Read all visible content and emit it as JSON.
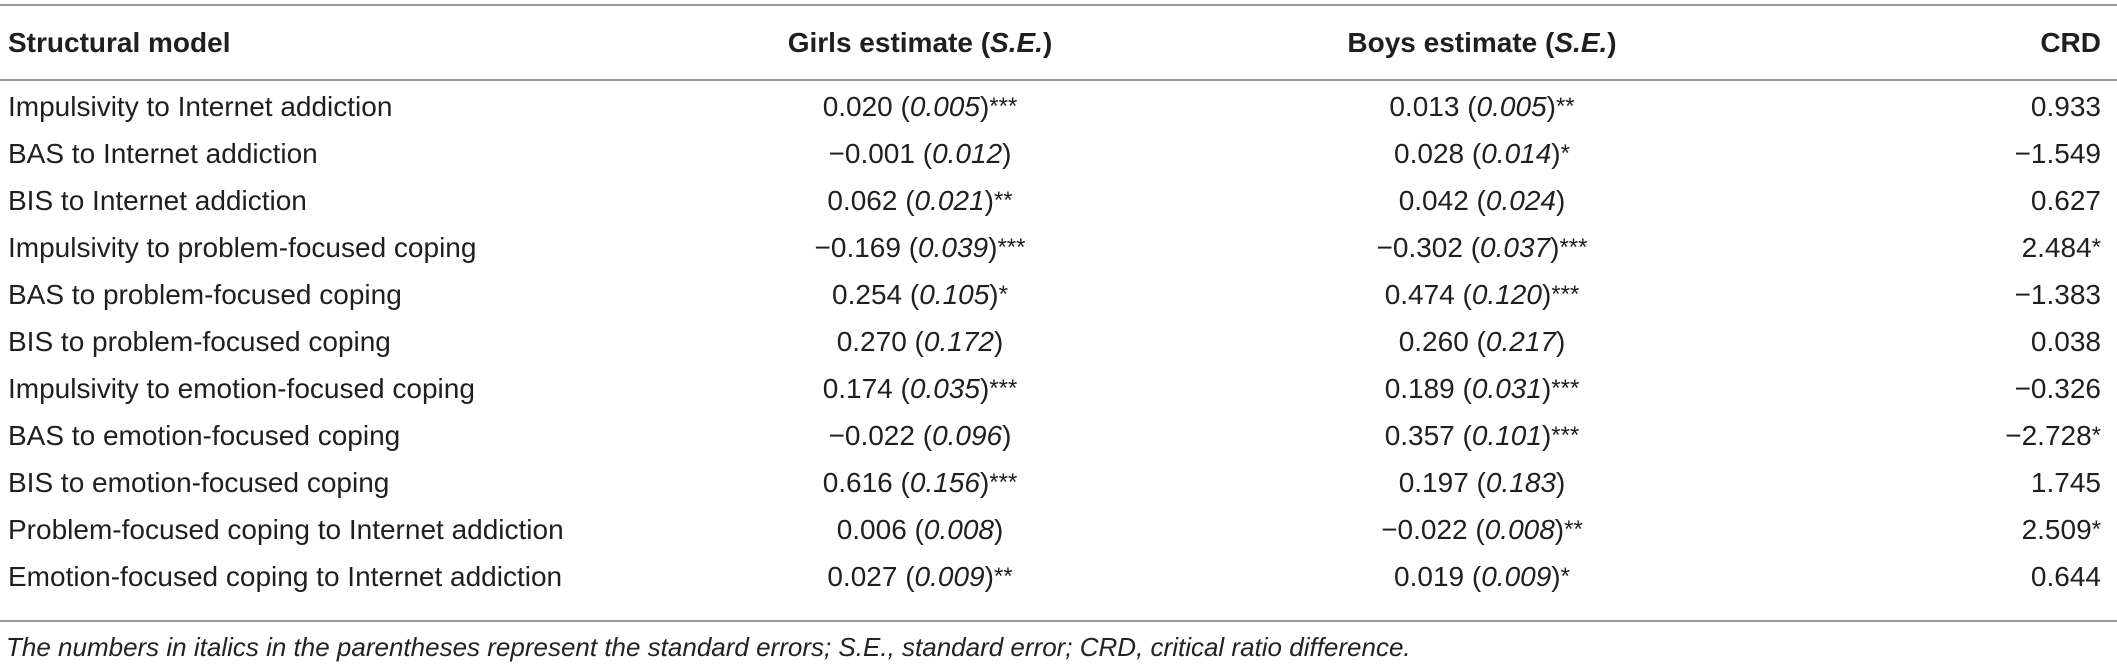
{
  "header": {
    "model": "Structural model",
    "girls_prefix": "Girls estimate (",
    "girls_se": "S.E.",
    "girls_suffix": ")",
    "boys_prefix": "Boys estimate (",
    "boys_se": "S.E.",
    "boys_suffix": ")",
    "crd": "CRD"
  },
  "rows": [
    {
      "model": "Impulsivity to Internet addiction",
      "girls_est": "0.020",
      "girls_se": "0.005",
      "girls_sig": "***",
      "boys_est": "0.013",
      "boys_se": "0.005",
      "boys_sig": "**",
      "crd": "0.933",
      "crd_sig": ""
    },
    {
      "model": "BAS to Internet addiction",
      "girls_est": "−0.001",
      "girls_se": "0.012",
      "girls_sig": "",
      "boys_est": "0.028",
      "boys_se": "0.014",
      "boys_sig": "*",
      "crd": "−1.549",
      "crd_sig": ""
    },
    {
      "model": "BIS to Internet addiction",
      "girls_est": "0.062",
      "girls_se": "0.021",
      "girls_sig": "**",
      "boys_est": "0.042",
      "boys_se": "0.024",
      "boys_sig": "",
      "crd": "0.627",
      "crd_sig": ""
    },
    {
      "model": "Impulsivity to problem-focused coping",
      "girls_est": "−0.169",
      "girls_se": "0.039",
      "girls_sig": "***",
      "boys_est": "−0.302",
      "boys_se": "0.037",
      "boys_sig": "***",
      "crd": "2.484",
      "crd_sig": "*"
    },
    {
      "model": "BAS to problem-focused coping",
      "girls_est": "0.254",
      "girls_se": "0.105",
      "girls_sig": "*",
      "boys_est": "0.474",
      "boys_se": "0.120",
      "boys_sig": "***",
      "crd": "−1.383",
      "crd_sig": ""
    },
    {
      "model": "BIS to problem-focused coping",
      "girls_est": "0.270",
      "girls_se": "0.172",
      "girls_sig": "",
      "boys_est": "0.260",
      "boys_se": "0.217",
      "boys_sig": "",
      "crd": "0.038",
      "crd_sig": ""
    },
    {
      "model": "Impulsivity to emotion-focused coping",
      "girls_est": "0.174",
      "girls_se": "0.035",
      "girls_sig": "***",
      "boys_est": "0.189",
      "boys_se": "0.031",
      "boys_sig": "***",
      "crd": "−0.326",
      "crd_sig": ""
    },
    {
      "model": "BAS to emotion-focused coping",
      "girls_est": "−0.022",
      "girls_se": "0.096",
      "girls_sig": "",
      "boys_est": "0.357",
      "boys_se": "0.101",
      "boys_sig": "***",
      "crd": "−2.728",
      "crd_sig": "*"
    },
    {
      "model": "BIS to emotion-focused coping",
      "girls_est": "0.616",
      "girls_se": "0.156",
      "girls_sig": "***",
      "boys_est": "0.197",
      "boys_se": "0.183",
      "boys_sig": "",
      "crd": "1.745",
      "crd_sig": ""
    },
    {
      "model": "Problem-focused coping to Internet addiction",
      "girls_est": "0.006",
      "girls_se": "0.008",
      "girls_sig": "",
      "boys_est": "−0.022",
      "boys_se": "0.008",
      "boys_sig": "**",
      "crd": "2.509",
      "crd_sig": "*"
    },
    {
      "model": "Emotion-focused coping to Internet addiction",
      "girls_est": "0.027",
      "girls_se": "0.009",
      "girls_sig": "**",
      "boys_est": "0.019",
      "boys_se": "0.009",
      "boys_sig": "*",
      "crd": "0.644",
      "crd_sig": ""
    }
  ],
  "footnote": "The numbers in italics in the parentheses represent the standard errors; S.E., standard error; CRD, critical ratio difference."
}
